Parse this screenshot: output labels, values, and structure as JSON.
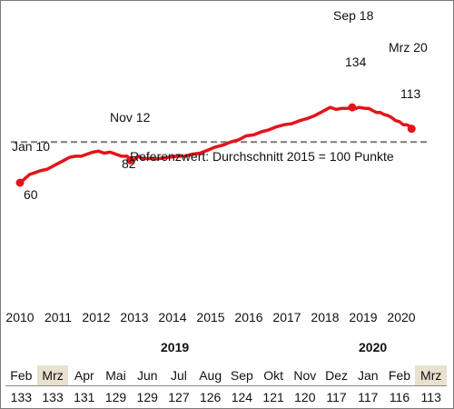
{
  "chart_data": {
    "type": "line",
    "series": [
      {
        "color": "#e3141b",
        "points": [
          [
            2010.0,
            60
          ],
          [
            2010.1,
            63
          ],
          [
            2010.25,
            68
          ],
          [
            2010.4,
            70
          ],
          [
            2010.55,
            72
          ],
          [
            2010.7,
            73
          ],
          [
            2010.85,
            76
          ],
          [
            2011.0,
            79
          ],
          [
            2011.15,
            82
          ],
          [
            2011.3,
            85
          ],
          [
            2011.45,
            86
          ],
          [
            2011.6,
            86
          ],
          [
            2011.75,
            88
          ],
          [
            2011.9,
            90
          ],
          [
            2012.05,
            91
          ],
          [
            2012.2,
            89
          ],
          [
            2012.35,
            90
          ],
          [
            2012.5,
            88
          ],
          [
            2012.65,
            86
          ],
          [
            2012.8,
            86
          ],
          [
            2012.88,
            82
          ],
          [
            2013.0,
            83
          ],
          [
            2013.1,
            86
          ],
          [
            2013.2,
            83
          ],
          [
            2013.35,
            84
          ],
          [
            2013.5,
            83
          ],
          [
            2013.7,
            84
          ],
          [
            2013.9,
            85
          ],
          [
            2014.1,
            86
          ],
          [
            2014.3,
            86
          ],
          [
            2014.5,
            88
          ],
          [
            2014.7,
            89
          ],
          [
            2014.9,
            92
          ],
          [
            2015.1,
            95
          ],
          [
            2015.3,
            97
          ],
          [
            2015.5,
            100
          ],
          [
            2015.7,
            102
          ],
          [
            2015.9,
            106
          ],
          [
            2016.1,
            107
          ],
          [
            2016.3,
            110
          ],
          [
            2016.5,
            112
          ],
          [
            2016.7,
            115
          ],
          [
            2016.9,
            117
          ],
          [
            2017.1,
            118
          ],
          [
            2017.3,
            121
          ],
          [
            2017.5,
            123
          ],
          [
            2017.7,
            126
          ],
          [
            2017.9,
            130
          ],
          [
            2018.1,
            134
          ],
          [
            2018.25,
            132
          ],
          [
            2018.4,
            133
          ],
          [
            2018.55,
            133
          ],
          [
            2018.67,
            134
          ],
          [
            2018.7,
            132
          ],
          [
            2018.85,
            134
          ],
          [
            2019.0,
            133
          ],
          [
            2019.1,
            133
          ],
          [
            2019.2,
            131
          ],
          [
            2019.3,
            129
          ],
          [
            2019.4,
            129
          ],
          [
            2019.5,
            127
          ],
          [
            2019.6,
            126
          ],
          [
            2019.7,
            124
          ],
          [
            2019.8,
            121
          ],
          [
            2019.9,
            120
          ],
          [
            2020.0,
            117
          ],
          [
            2020.08,
            117
          ],
          [
            2020.15,
            116
          ],
          [
            2020.22,
            113
          ]
        ]
      }
    ],
    "x_ticks": [
      "2010",
      "2011",
      "2012",
      "2013",
      "2014",
      "2015",
      "2016",
      "2017",
      "2018",
      "2019",
      "2020"
    ],
    "reference_line": {
      "value": 100,
      "label": "Referenzwert:  Durchschnitt 2015 = 100 Punkte",
      "color": "#7a7a7a"
    },
    "annotations": [
      {
        "x": 2010.0,
        "y": 60,
        "label": "Jan 10",
        "value": "60"
      },
      {
        "x": 2012.88,
        "y": 82,
        "label": "Nov 12",
        "value": "82"
      },
      {
        "x": 2018.67,
        "y": 134,
        "label": "Sep 18",
        "value": "134"
      },
      {
        "x": 2020.22,
        "y": 113,
        "label": "Mrz 20",
        "value": "113"
      }
    ]
  },
  "table": {
    "year_headers": [
      "2019",
      "2020"
    ],
    "months": [
      "Feb",
      "Mrz",
      "Apr",
      "Mai",
      "Jun",
      "Jul",
      "Aug",
      "Sep",
      "Okt",
      "Nov",
      "Dez",
      "Jan",
      "Feb",
      "Mrz"
    ],
    "values": [
      "133",
      "133",
      "131",
      "129",
      "129",
      "127",
      "126",
      "124",
      "121",
      "120",
      "117",
      "117",
      "116",
      "113"
    ],
    "highlight_color": "#e7e1cd"
  }
}
